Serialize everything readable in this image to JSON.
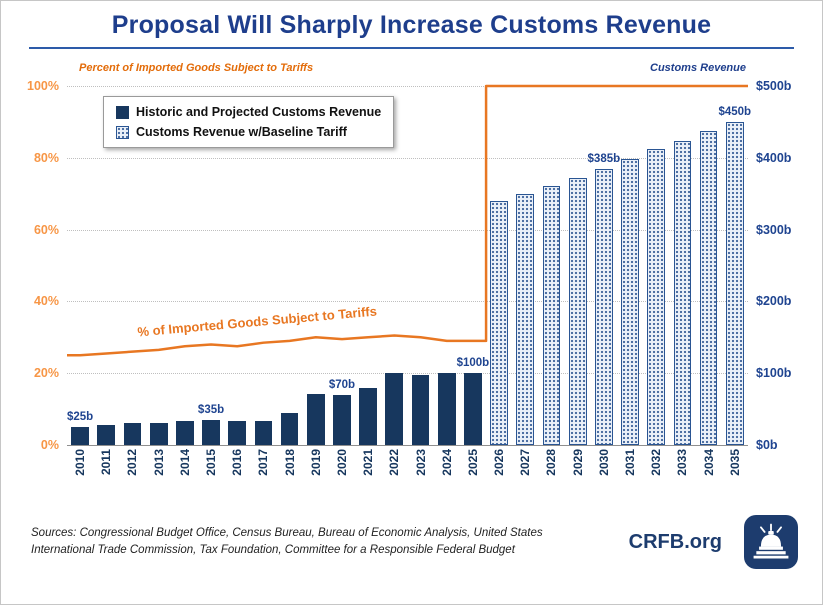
{
  "title": "Proposal Will Sharply Increase Customs Revenue",
  "left_axis_title": "Percent of Imported Goods Subject to Tariffs",
  "right_axis_title": "Customs Revenue",
  "legend": {
    "solid": "Historic and Projected Customs Revenue",
    "hatched": "Customs Revenue w/Baseline Tariff"
  },
  "line_annotation": "% of Imported Goods Subject to Tariffs",
  "footer": {
    "sources": "Sources: Congressional Budget Office, Census Bureau, Bureau of Economic Analysis, United States International Trade Commission, Tax Foundation, Committee for a Responsible Federal Budget",
    "brand": "CRFB.org",
    "logo": "capitol-dome-icon"
  },
  "colors": {
    "title_blue": "#1e3e8c",
    "navy": "#17375e",
    "label_blue": "#1f4490",
    "orange_line": "#e87722",
    "orange_tick": "#f79646",
    "grid": "#bfbfbf",
    "hatch_bg": "#eaf0f8",
    "hatch_dot": "#45699e",
    "brand_blue": "#1d3c6e"
  },
  "chart_data": {
    "type": "bar",
    "categories": [
      "2010",
      "2011",
      "2012",
      "2013",
      "2014",
      "2015",
      "2016",
      "2017",
      "2018",
      "2019",
      "2020",
      "2021",
      "2022",
      "2023",
      "2024",
      "2025",
      "2026",
      "2027",
      "2028",
      "2029",
      "2030",
      "2031",
      "2032",
      "2033",
      "2034",
      "2035"
    ],
    "series": [
      {
        "name": "Historic and Projected Customs Revenue",
        "type": "bar",
        "style": "solid",
        "axis": "right",
        "unit": "$b",
        "values": [
          25,
          28,
          30,
          31,
          33,
          35,
          34,
          34,
          44,
          71,
          70,
          80,
          100,
          98,
          100,
          100,
          null,
          null,
          null,
          null,
          null,
          null,
          null,
          null,
          null,
          null
        ]
      },
      {
        "name": "Customs Revenue w/Baseline Tariff",
        "type": "bar",
        "style": "hatched",
        "axis": "right",
        "unit": "$b",
        "values": [
          null,
          null,
          null,
          null,
          null,
          null,
          null,
          null,
          null,
          null,
          null,
          null,
          null,
          null,
          null,
          null,
          340,
          350,
          361,
          372,
          385,
          398,
          412,
          424,
          437,
          450
        ]
      },
      {
        "name": "% of Imported Goods Subject to Tariffs",
        "type": "line",
        "axis": "left",
        "unit": "%",
        "values": [
          25,
          25.5,
          26,
          26.5,
          27.5,
          28,
          27.5,
          28.5,
          29,
          30,
          29.5,
          30,
          30.5,
          30,
          29,
          29,
          100,
          100,
          100,
          100,
          100,
          100,
          100,
          100,
          100,
          100
        ]
      }
    ],
    "bar_labels": {
      "0": "$25b",
      "5": "$35b",
      "10": "$70b",
      "15": "$100b",
      "20": "$385b",
      "25": "$450b"
    },
    "left_axis": {
      "ticks": [
        "0%",
        "20%",
        "40%",
        "60%",
        "80%",
        "100%"
      ],
      "min": 0,
      "max": 100
    },
    "right_axis": {
      "ticks": [
        "$0b",
        "$100b",
        "$200b",
        "$300b",
        "$400b",
        "$500b"
      ],
      "min": 0,
      "max": 500
    },
    "grid": "horizontal-dotted",
    "legend_position": "top-left-inside"
  }
}
